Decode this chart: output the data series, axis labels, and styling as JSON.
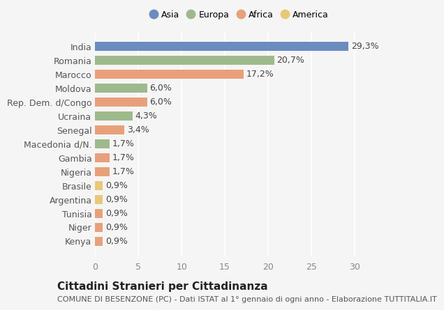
{
  "categories": [
    "Kenya",
    "Niger",
    "Tunisia",
    "Argentina",
    "Brasile",
    "Nigeria",
    "Gambia",
    "Macedonia d/N.",
    "Senegal",
    "Ucraina",
    "Rep. Dem. d/Congo",
    "Moldova",
    "Marocco",
    "Romania",
    "India"
  ],
  "values": [
    0.9,
    0.9,
    0.9,
    0.9,
    0.9,
    1.7,
    1.7,
    1.7,
    3.4,
    4.3,
    6.0,
    6.0,
    17.2,
    20.7,
    29.3
  ],
  "labels": [
    "0,9%",
    "0,9%",
    "0,9%",
    "0,9%",
    "0,9%",
    "1,7%",
    "1,7%",
    "1,7%",
    "3,4%",
    "4,3%",
    "6,0%",
    "6,0%",
    "17,2%",
    "20,7%",
    "29,3%"
  ],
  "colors": [
    "#e8a07a",
    "#e8a07a",
    "#e8a07a",
    "#e8c87a",
    "#e8c87a",
    "#e8a07a",
    "#e8a07a",
    "#9eba8c",
    "#e8a07a",
    "#9eba8c",
    "#e8a07a",
    "#9eba8c",
    "#e8a07a",
    "#9eba8c",
    "#6b8cbf"
  ],
  "continent_colors": {
    "Asia": "#6b8cbf",
    "Europa": "#9eba8c",
    "Africa": "#e8a07a",
    "America": "#e8c87a"
  },
  "legend_labels": [
    "Asia",
    "Europa",
    "Africa",
    "America"
  ],
  "xlim": [
    0,
    32
  ],
  "xticks": [
    0,
    5,
    10,
    15,
    20,
    25,
    30
  ],
  "title": "Cittadini Stranieri per Cittadinanza",
  "subtitle": "COMUNE DI BESENZONE (PC) - Dati ISTAT al 1° gennaio di ogni anno - Elaborazione TUTTITALIA.IT",
  "background_color": "#f5f5f5",
  "bar_height": 0.65,
  "label_fontsize": 9,
  "tick_fontsize": 9,
  "title_fontsize": 11,
  "subtitle_fontsize": 8
}
